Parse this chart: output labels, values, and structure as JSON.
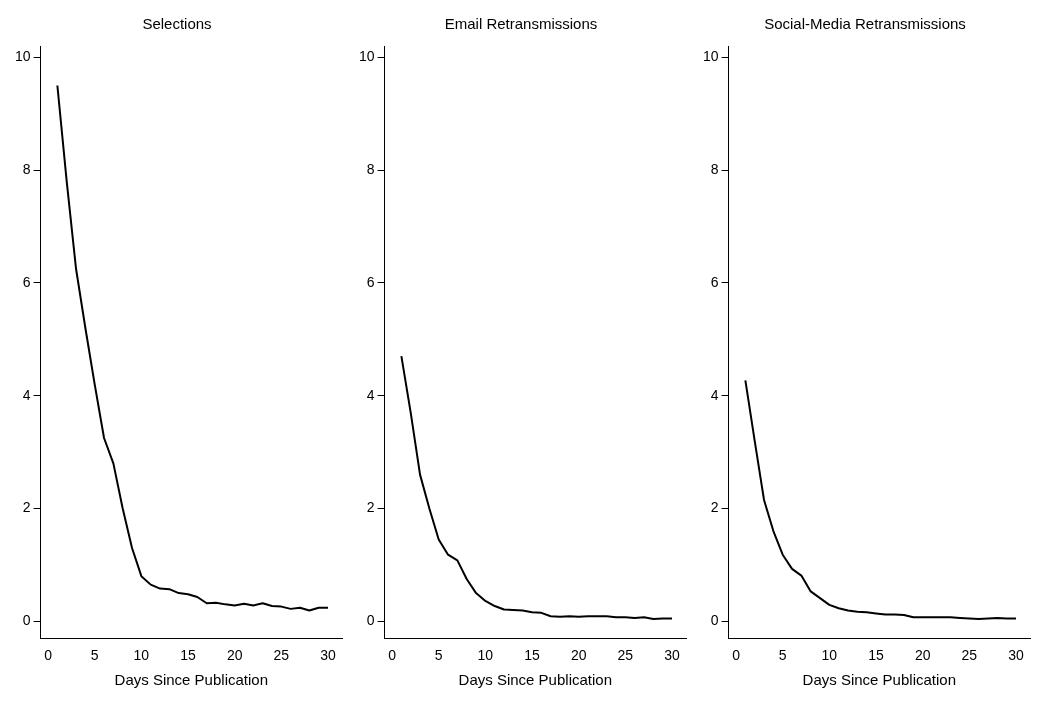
{
  "chart_data": [
    {
      "type": "line",
      "title": "Selections",
      "xlabel": "Days Since Publication",
      "marker": "none",
      "xlim": [
        -0.8,
        31.5
      ],
      "xticks": [
        0,
        5,
        10,
        15,
        20,
        25,
        30
      ],
      "ylim": [
        -0.3,
        10.2
      ],
      "yticks": [
        0,
        2,
        4,
        6,
        8,
        10
      ],
      "x": [
        1,
        2,
        3,
        4,
        5,
        6,
        7,
        8,
        9,
        10,
        11,
        12,
        13,
        14,
        15,
        16,
        17,
        18,
        19,
        20,
        21,
        22,
        23,
        24,
        25,
        26,
        27,
        28,
        29,
        30
      ],
      "series": [
        {
          "color": "#000000",
          "values": [
            9.5,
            7.8,
            6.25,
            5.2,
            4.2,
            3.25,
            2.8,
            2.0,
            1.3,
            0.8,
            0.65,
            0.58,
            0.57,
            0.5,
            0.48,
            0.43,
            0.32,
            0.33,
            0.3,
            0.28,
            0.31,
            0.28,
            0.32,
            0.27,
            0.26,
            0.22,
            0.24,
            0.19,
            0.24,
            0.24
          ]
        }
      ]
    },
    {
      "type": "line",
      "title": "Email Retransmissions",
      "xlabel": "Days Since Publication",
      "marker": "none",
      "xlim": [
        -0.8,
        31.5
      ],
      "xticks": [
        0,
        5,
        10,
        15,
        20,
        25,
        30
      ],
      "ylim": [
        -0.3,
        10.2
      ],
      "yticks": [
        0,
        2,
        4,
        6,
        8,
        10
      ],
      "x": [
        1,
        2,
        3,
        4,
        5,
        6,
        7,
        8,
        9,
        10,
        11,
        12,
        13,
        14,
        15,
        16,
        17,
        18,
        19,
        20,
        21,
        22,
        23,
        24,
        25,
        26,
        27,
        28,
        29,
        30
      ],
      "series": [
        {
          "color": "#000000",
          "values": [
            4.7,
            3.7,
            2.6,
            2.0,
            1.45,
            1.18,
            1.08,
            0.75,
            0.5,
            0.36,
            0.27,
            0.21,
            0.2,
            0.19,
            0.16,
            0.15,
            0.09,
            0.08,
            0.09,
            0.08,
            0.09,
            0.09,
            0.09,
            0.07,
            0.07,
            0.06,
            0.07,
            0.04,
            0.05,
            0.05
          ]
        }
      ]
    },
    {
      "type": "line",
      "title": "Social-Media Retransmissions",
      "xlabel": "Days Since Publication",
      "marker": "none",
      "xlim": [
        -0.8,
        31.5
      ],
      "xticks": [
        0,
        5,
        10,
        15,
        20,
        25,
        30
      ],
      "ylim": [
        -0.3,
        10.2
      ],
      "yticks": [
        0,
        2,
        4,
        6,
        8,
        10
      ],
      "x": [
        1,
        2,
        3,
        4,
        5,
        6,
        7,
        8,
        9,
        10,
        11,
        12,
        13,
        14,
        15,
        16,
        17,
        18,
        19,
        20,
        21,
        22,
        23,
        24,
        25,
        26,
        27,
        28,
        29,
        30
      ],
      "series": [
        {
          "color": "#000000",
          "values": [
            4.27,
            3.2,
            2.15,
            1.6,
            1.18,
            0.93,
            0.81,
            0.53,
            0.41,
            0.29,
            0.23,
            0.19,
            0.17,
            0.16,
            0.14,
            0.12,
            0.12,
            0.11,
            0.07,
            0.07,
            0.07,
            0.07,
            0.07,
            0.06,
            0.05,
            0.04,
            0.05,
            0.06,
            0.05,
            0.05
          ]
        }
      ]
    }
  ]
}
